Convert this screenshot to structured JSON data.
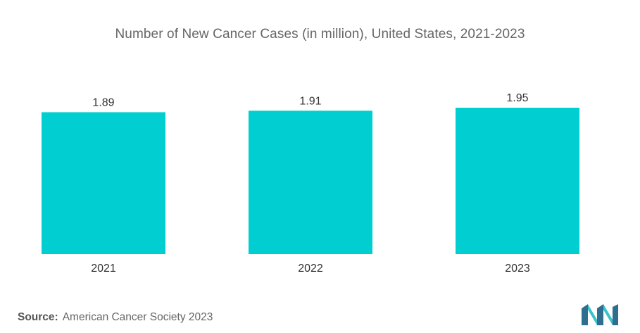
{
  "chart_data": {
    "type": "bar",
    "title": "Number of New Cancer Cases (in million), United States, 2021-2023",
    "xlabel": "",
    "ylabel": "",
    "categories": [
      "2021",
      "2022",
      "2023"
    ],
    "values": [
      1.89,
      1.91,
      1.95
    ],
    "value_labels": [
      "1.89",
      "1.91",
      "1.95"
    ],
    "ylim": [
      0,
      2.1
    ],
    "grid": false,
    "legend": "none",
    "bar_color": "#00CED1"
  },
  "source": {
    "label": "Source:",
    "text": "American Cancer Society 2023"
  },
  "colors": {
    "bar": "#00CED1",
    "logo_dark": "#2E6E8E",
    "logo_light": "#3CC3C9"
  }
}
